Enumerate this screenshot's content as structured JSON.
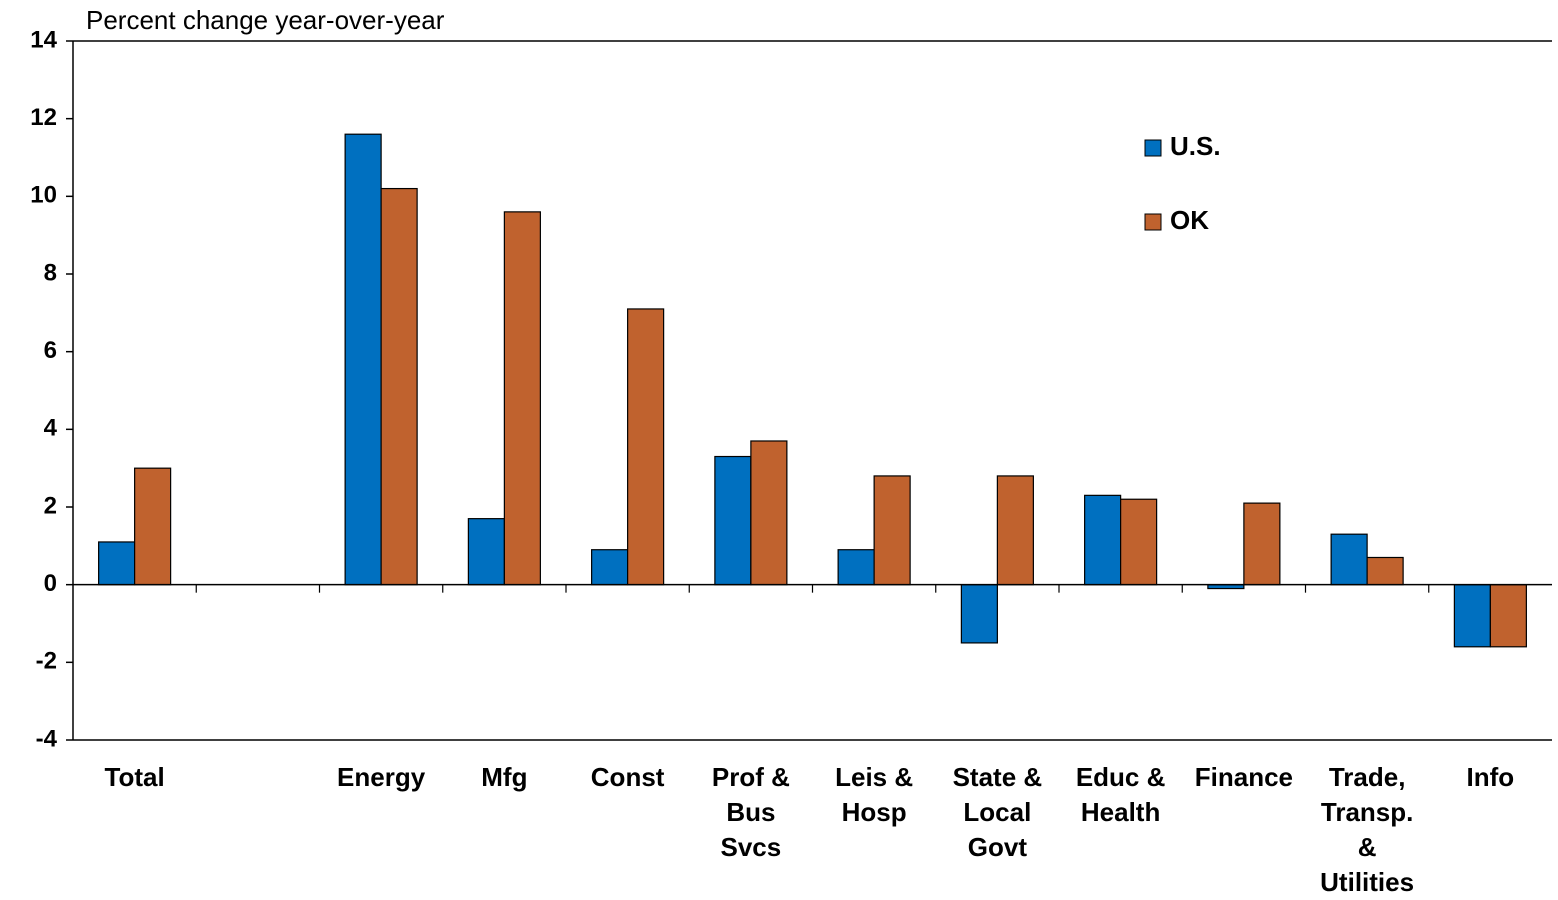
{
  "chart_data": {
    "type": "bar",
    "y_axis_title": "Percent change year-over-year",
    "categories": [
      "Total",
      null,
      "Energy",
      "Mfg",
      "Const",
      "Prof &\nBus\nSvcs",
      "Leis &\nHosp",
      "State &\nLocal\nGovt",
      "Educ &\nHealth",
      "Finance",
      "Trade,\nTransp.\n&\nUtilities",
      "Info"
    ],
    "series": [
      {
        "name": "U.S.",
        "color": "#0070c0",
        "values": [
          1.1,
          null,
          11.6,
          1.7,
          0.9,
          3.3,
          0.9,
          -1.5,
          2.3,
          -0.1,
          1.3,
          -1.6
        ]
      },
      {
        "name": "OK",
        "color": "#c0622e",
        "values": [
          3.0,
          null,
          10.2,
          9.6,
          7.1,
          3.7,
          2.8,
          2.8,
          2.2,
          2.1,
          0.7,
          -1.6
        ]
      }
    ],
    "ylim": [
      -4,
      14
    ],
    "yticks": [
      -4,
      -2,
      0,
      2,
      4,
      6,
      8,
      10,
      12,
      14
    ],
    "legend": "upper right"
  }
}
